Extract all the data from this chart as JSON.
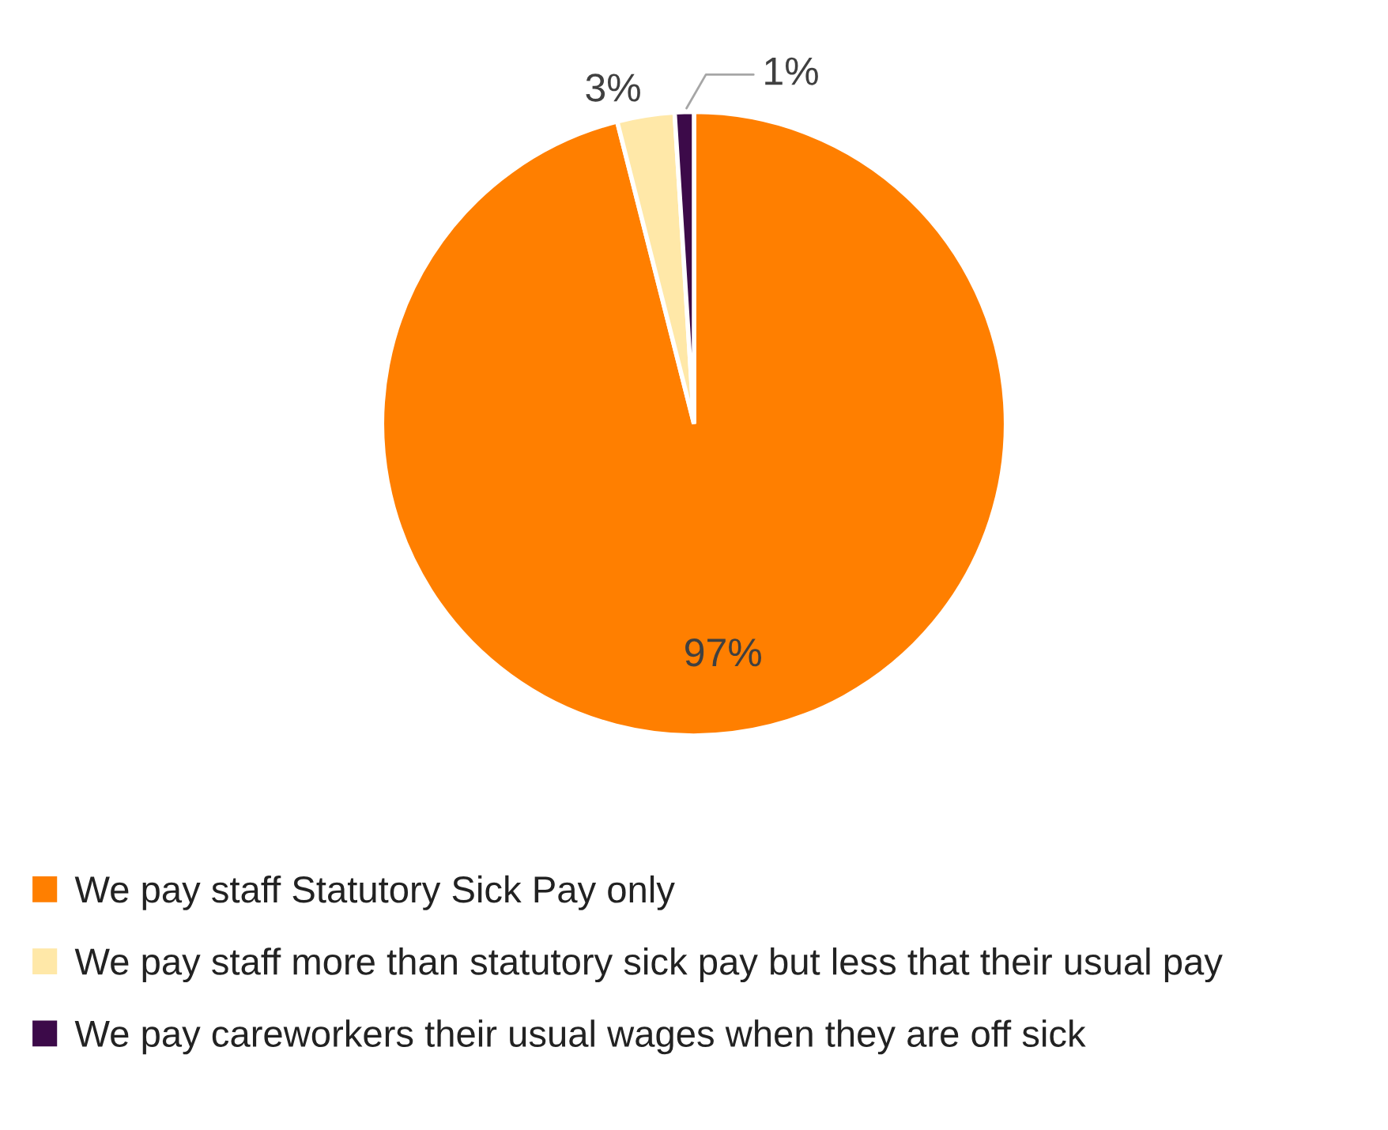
{
  "chart_data": {
    "type": "pie",
    "categories": [
      "We pay staff Statutory Sick Pay only",
      "We pay staff more than statutory sick pay but less that their usual pay",
      "We pay careworkers their usual wages when they are off sick"
    ],
    "values": [
      97,
      3,
      1
    ],
    "colors": [
      "#ff7f00",
      "#ffe8a8",
      "#3c0a49"
    ],
    "value_labels": [
      "97%",
      "3%",
      "1%"
    ],
    "legend": "bottom"
  }
}
